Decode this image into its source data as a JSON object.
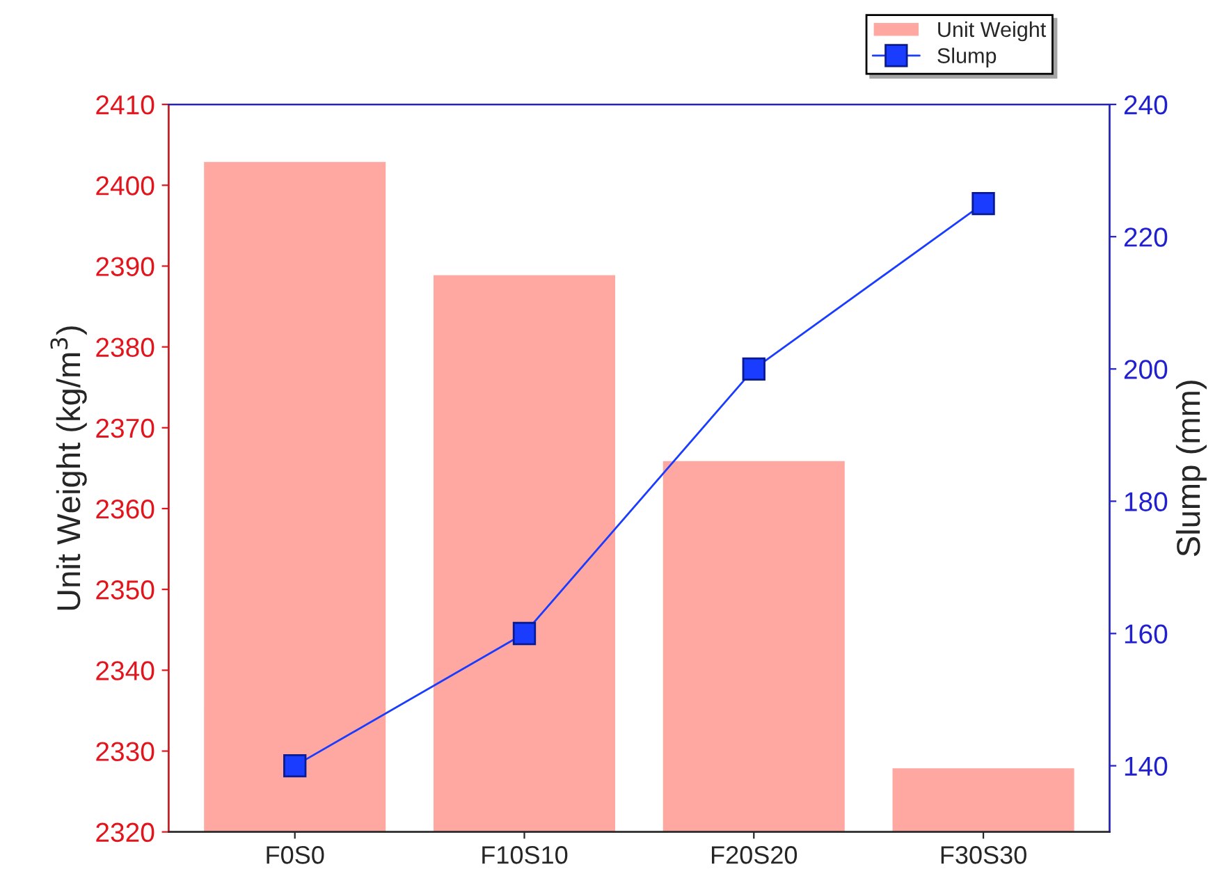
{
  "chart_data": {
    "type": "bar",
    "categories": [
      "F0S0",
      "F10S10",
      "F20S20",
      "F30S30"
    ],
    "ylabel": "Unit Weight (kg/m$^{3}$)",
    "y2label": "Slump (mm)",
    "series": [
      {
        "name": "Unit Weight",
        "color": "#ffa8a2",
        "values": [
          2403,
          2389,
          2366,
          2328
        ]
      },
      {
        "name": "Slump",
        "type": "line",
        "axis": "y2",
        "color": "#1a3cff",
        "marker": "square",
        "line_style": "solid",
        "values": [
          140,
          160,
          200,
          225
        ]
      }
    ],
    "ylim": [
      2320,
      2410
    ],
    "yticks": [
      2320,
      2330,
      2340,
      2350,
      2360,
      2370,
      2380,
      2390,
      2400,
      2410
    ],
    "y2lim": [
      130,
      240
    ],
    "y2ticks": [
      140,
      160,
      180,
      200,
      220,
      240
    ],
    "grid": false,
    "legend": "top right"
  }
}
